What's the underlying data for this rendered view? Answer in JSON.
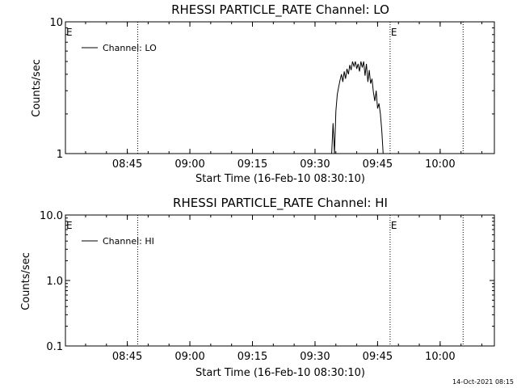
{
  "colors": {
    "background": "#ffffff",
    "foreground": "#000000"
  },
  "footer": {
    "timestamp": "14-Oct-2021 08:15"
  },
  "chart_data": [
    {
      "type": "line",
      "title": "RHESSI PARTICLE_RATE Channel: LO",
      "xlabel": "Start Time (16-Feb-10 08:30:10)",
      "ylabel": "Counts/sec",
      "yscale": "log",
      "xlim": [
        "08:30:10",
        "10:13:00"
      ],
      "ylim": [
        1,
        10
      ],
      "x_ticks": [
        "08:45",
        "09:00",
        "09:15",
        "09:30",
        "09:45",
        "10:00"
      ],
      "y_ticks": [
        {
          "value": 1,
          "label": "1"
        },
        {
          "value": 10,
          "label": "10"
        }
      ],
      "legend": {
        "position": "top-left",
        "entries": [
          "Channel: LO"
        ]
      },
      "vlines": [
        "08:47:30",
        "09:48:00",
        "10:05:30"
      ],
      "markers": [
        {
          "label": "E",
          "time": "08:30:10"
        },
        {
          "label": "E",
          "time": "09:48:00"
        }
      ],
      "series": [
        {
          "name": "Channel: LO",
          "x": [
            "09:34:00",
            "09:34:20",
            "09:34:40",
            "09:35:00",
            "09:35:20",
            "09:35:40",
            "09:36:00",
            "09:36:20",
            "09:36:40",
            "09:37:00",
            "09:37:20",
            "09:37:40",
            "09:38:00",
            "09:38:20",
            "09:38:40",
            "09:39:00",
            "09:39:20",
            "09:39:40",
            "09:40:00",
            "09:40:20",
            "09:40:40",
            "09:41:00",
            "09:41:20",
            "09:41:40",
            "09:42:00",
            "09:42:20",
            "09:42:40",
            "09:43:00",
            "09:43:20",
            "09:43:40",
            "09:44:00",
            "09:44:20",
            "09:44:40",
            "09:45:00",
            "09:45:20",
            "09:45:40",
            "09:46:00",
            "09:46:20"
          ],
          "values": [
            1.0,
            1.7,
            1.0,
            2.1,
            2.8,
            3.2,
            3.6,
            4.0,
            3.5,
            4.2,
            3.7,
            4.4,
            4.0,
            4.7,
            4.3,
            5.0,
            4.6,
            5.0,
            4.4,
            4.8,
            4.2,
            5.0,
            4.5,
            5.0,
            3.9,
            4.8,
            3.5,
            4.3,
            3.4,
            3.7,
            2.9,
            2.5,
            3.0,
            2.2,
            2.4,
            2.0,
            1.5,
            1.0
          ]
        }
      ]
    },
    {
      "type": "line",
      "title": "RHESSI PARTICLE_RATE Channel: HI",
      "xlabel": "Start Time (16-Feb-10 08:30:10)",
      "ylabel": "Counts/sec",
      "yscale": "log",
      "xlim": [
        "08:30:10",
        "10:13:00"
      ],
      "ylim": [
        0.1,
        10
      ],
      "x_ticks": [
        "08:45",
        "09:00",
        "09:15",
        "09:30",
        "09:45",
        "10:00"
      ],
      "y_ticks": [
        {
          "value": 0.1,
          "label": "0.1"
        },
        {
          "value": 1,
          "label": "1.0"
        },
        {
          "value": 10,
          "label": "10.0"
        }
      ],
      "legend": {
        "position": "top-left",
        "entries": [
          "Channel: HI"
        ]
      },
      "vlines": [
        "08:47:30",
        "09:48:00",
        "10:05:30"
      ],
      "markers": [
        {
          "label": "E",
          "time": "08:30:10"
        },
        {
          "label": "E",
          "time": "09:48:00"
        }
      ],
      "series": [
        {
          "name": "Channel: HI",
          "x": [],
          "values": []
        }
      ]
    }
  ]
}
